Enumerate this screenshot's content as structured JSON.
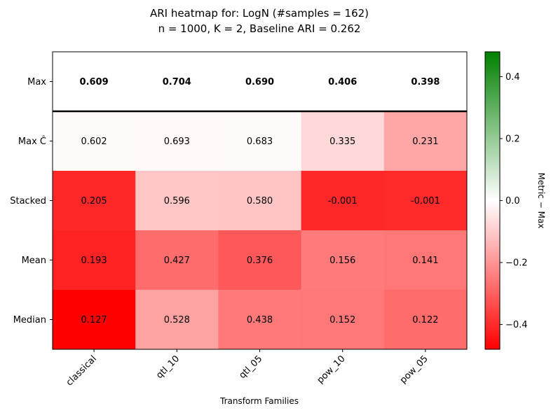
{
  "chart_data": {
    "type": "heatmap",
    "title": "ARI heatmap for: LogN (#samples = 162)",
    "subtitle": "n = 1000, K = 2, Baseline ARI = 0.262",
    "xlabel": "Transform Families",
    "ylabel": "",
    "columns": [
      "classical",
      "qtl_10",
      "qtl_05",
      "pow_10",
      "pow_05"
    ],
    "rows": [
      "Max",
      "Max Ĉ",
      "Stacked",
      "Mean",
      "Median"
    ],
    "values": [
      [
        0.609,
        0.704,
        0.69,
        0.406,
        0.398
      ],
      [
        0.602,
        0.693,
        0.683,
        0.335,
        0.231
      ],
      [
        0.205,
        0.596,
        0.58,
        -0.001,
        -0.001
      ],
      [
        0.193,
        0.427,
        0.376,
        0.156,
        0.141
      ],
      [
        0.127,
        0.528,
        0.438,
        0.152,
        0.122
      ]
    ],
    "labels": [
      [
        "0.609",
        "0.704",
        "0.690",
        "0.406",
        "0.398"
      ],
      [
        "0.602",
        "0.693",
        "0.683",
        "0.335",
        "0.231"
      ],
      [
        "0.205",
        "0.596",
        "0.580",
        "-0.001",
        "-0.001"
      ],
      [
        "0.193",
        "0.427",
        "0.376",
        "0.156",
        "0.141"
      ],
      [
        "0.127",
        "0.528",
        "0.438",
        "0.152",
        "0.122"
      ]
    ],
    "color_metric": "Metric − Max",
    "colorbar": {
      "label": "Metric − Max",
      "range": [
        -0.48,
        0.48
      ],
      "ticks": [
        0.4,
        0.2,
        0.0,
        -0.2,
        -0.4
      ],
      "tick_labels": [
        "0.4",
        "0.2",
        "0.0",
        "−0.2",
        "−0.4"
      ],
      "colors": {
        "low": "#ff0000",
        "mid": "#ffffff",
        "high": "#008000"
      }
    },
    "bold_rows": [
      0
    ],
    "separator_after_row": 0,
    "grid": false
  }
}
